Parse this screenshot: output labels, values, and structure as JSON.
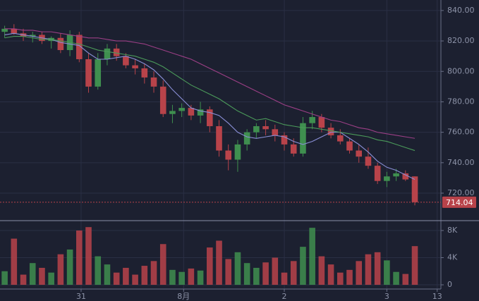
{
  "chart_data": {
    "type": "candlestick",
    "x": [
      0,
      1,
      2,
      3,
      4,
      5,
      6,
      7,
      8,
      9,
      10,
      11,
      12,
      13,
      14,
      15,
      16,
      17,
      18,
      19,
      20,
      21,
      22,
      23,
      24,
      25,
      26,
      27,
      28,
      29,
      30,
      31,
      32,
      33,
      34,
      35,
      36,
      37,
      38,
      39,
      40,
      41,
      42,
      43,
      44
    ],
    "open": [
      826,
      828,
      825,
      823,
      824,
      820,
      822,
      814,
      824,
      808,
      790,
      808,
      815,
      810,
      804,
      802,
      796,
      790,
      772,
      774,
      776,
      771,
      775,
      764,
      748,
      742,
      752,
      760,
      764,
      762,
      758,
      752,
      746,
      766,
      770,
      763,
      758,
      754,
      748,
      744,
      738,
      728,
      731,
      733,
      731
    ],
    "high": [
      830,
      831,
      828,
      826,
      826,
      823,
      825,
      827,
      826,
      812,
      812,
      818,
      818,
      812,
      808,
      805,
      800,
      794,
      778,
      779,
      778,
      780,
      777,
      768,
      752,
      755,
      762,
      766,
      768,
      765,
      760,
      756,
      770,
      774,
      772,
      766,
      762,
      756,
      752,
      750,
      740,
      734,
      736,
      735,
      731
    ],
    "low": [
      822,
      824,
      820,
      819,
      818,
      815,
      812,
      810,
      806,
      786,
      788,
      804,
      807,
      802,
      798,
      792,
      786,
      770,
      766,
      770,
      768,
      766,
      760,
      744,
      735,
      734,
      748,
      756,
      758,
      754,
      748,
      744,
      744,
      762,
      760,
      756,
      752,
      746,
      740,
      736,
      726,
      724,
      728,
      728,
      712
    ],
    "close": [
      828,
      825,
      823,
      824,
      820,
      822,
      814,
      824,
      808,
      790,
      808,
      815,
      810,
      804,
      802,
      796,
      790,
      772,
      774,
      776,
      771,
      775,
      764,
      748,
      742,
      752,
      760,
      764,
      762,
      758,
      752,
      746,
      766,
      770,
      763,
      758,
      754,
      748,
      744,
      738,
      728,
      731,
      733,
      729,
      714.04
    ],
    "volume": [
      2000,
      6800,
      1500,
      3200,
      2500,
      1800,
      4500,
      5200,
      8000,
      8500,
      4200,
      3000,
      1800,
      2500,
      1500,
      2800,
      3500,
      6000,
      2200,
      1900,
      2400,
      2100,
      5500,
      6500,
      3800,
      4800,
      3200,
      2500,
      3300,
      4000,
      1800,
      3500,
      5600,
      8400,
      4200,
      3000,
      1800,
      2200,
      3500,
      4500,
      4800,
      3600,
      1900,
      1600,
      5700
    ],
    "series": [
      {
        "color": "#8a8fd6",
        "values": [
          824,
          825,
          824,
          823,
          822,
          821,
          819,
          818,
          817,
          812,
          808,
          808,
          809,
          810,
          808,
          805,
          801,
          795,
          788,
          782,
          776,
          774,
          773,
          771,
          766,
          760,
          757,
          756,
          757,
          758,
          757,
          754,
          752,
          754,
          757,
          760,
          760,
          756,
          752,
          747,
          741,
          737,
          735,
          732,
          729
        ]
      },
      {
        "color": "#4b9a5a",
        "values": [
          822,
          823,
          823,
          822,
          821,
          821,
          820,
          819,
          818,
          816,
          814,
          813,
          812,
          811,
          810,
          808,
          806,
          803,
          799,
          795,
          791,
          788,
          785,
          782,
          778,
          774,
          771,
          768,
          769,
          767,
          765,
          764,
          763,
          763,
          762,
          761,
          760,
          759,
          758,
          757,
          755,
          754,
          752,
          750,
          748
        ]
      },
      {
        "color": "#9c3f86",
        "values": [
          828,
          828,
          827,
          827,
          826,
          826,
          825,
          824,
          823,
          822,
          822,
          821,
          820,
          820,
          819,
          818,
          816,
          814,
          812,
          810,
          808,
          805,
          802,
          799,
          796,
          793,
          790,
          787,
          784,
          781,
          778,
          776,
          774,
          772,
          770,
          768,
          767,
          765,
          763,
          762,
          760,
          759,
          758,
          757,
          756
        ]
      }
    ],
    "up_color": "#3f8f4f",
    "down_color": "#b8434a",
    "xlim": [
      -0.5,
      46.8
    ],
    "xticks": [
      {
        "value": 8.2,
        "label": "31"
      },
      {
        "value": 19.2,
        "label": "8月"
      },
      {
        "value": 30,
        "label": "2"
      },
      {
        "value": 41,
        "label": "3"
      },
      {
        "value": 46.4,
        "label": "13"
      }
    ],
    "ylim": [
      702.4,
      846.9
    ],
    "yticks": [
      {
        "value": 720,
        "label": "720.00"
      },
      {
        "value": 740,
        "label": "740.00"
      },
      {
        "value": 760,
        "label": "760.00"
      },
      {
        "value": 780,
        "label": "780.00"
      },
      {
        "value": 800,
        "label": "800.00"
      },
      {
        "value": 820,
        "label": "820.00"
      },
      {
        "value": 840,
        "label": "840.00"
      }
    ],
    "volume_ylim": [
      -620,
      9350
    ],
    "volume_ticks": [
      0,
      {
        "value": 4000,
        "label": "4K"
      },
      {
        "value": 8000,
        "label": "8K"
      }
    ],
    "last_price": 714.04,
    "grid": true
  }
}
